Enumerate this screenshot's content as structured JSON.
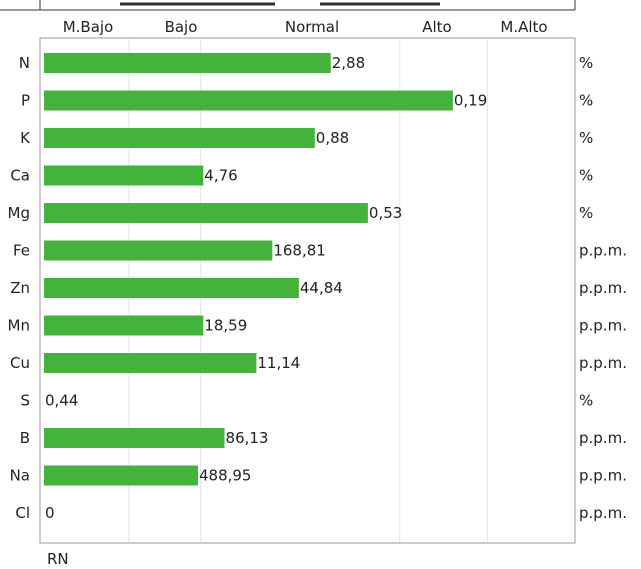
{
  "chart_data": {
    "type": "bar",
    "orientation": "horizontal",
    "band_labels": [
      "M.Bajo",
      "Bajo",
      "Normal",
      "Alto",
      "M.Alto"
    ],
    "categories": [
      "N",
      "P",
      "K",
      "Ca",
      "Mg",
      "Fe",
      "Zn",
      "Mn",
      "Cu",
      "S",
      "B",
      "Na",
      "Cl"
    ],
    "value_labels": [
      "2,88",
      "0,19",
      "0,88",
      "4,76",
      "0,53",
      "168,81",
      "44,84",
      "18,59",
      "11,14",
      "0,44",
      "86,13",
      "488,95",
      "0"
    ],
    "units": [
      "%",
      "%",
      "%",
      "%",
      "%",
      "p.p.m.",
      "p.p.m.",
      "p.p.m.",
      "p.p.m.",
      "%",
      "p.p.m.",
      "p.p.m.",
      "p.p.m."
    ],
    "bar_level": [
      0.54,
      0.77,
      0.51,
      0.3,
      0.61,
      0.43,
      0.48,
      0.3,
      0.4,
      0.0,
      0.34,
      0.29,
      0.0
    ],
    "xlabel": "RN",
    "bar_color": "#44b33c",
    "grid": true
  }
}
